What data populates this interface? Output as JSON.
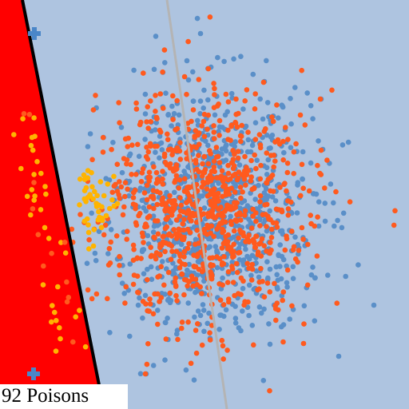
{
  "status": {
    "poison_count": 92,
    "label": "92 Poisons"
  },
  "colors": {
    "background": "#aec4e0",
    "forbidden_region": "#ff0000",
    "boundary_line": "#000000",
    "reference_line": "#b4b4b4",
    "points_blue": "#5a8fc8",
    "points_orange": "#ff5a1e",
    "poison_points": "#ffb400",
    "marker_cross": "#4a86c8"
  },
  "icons": {
    "marker": "cross-marker-icon"
  }
}
